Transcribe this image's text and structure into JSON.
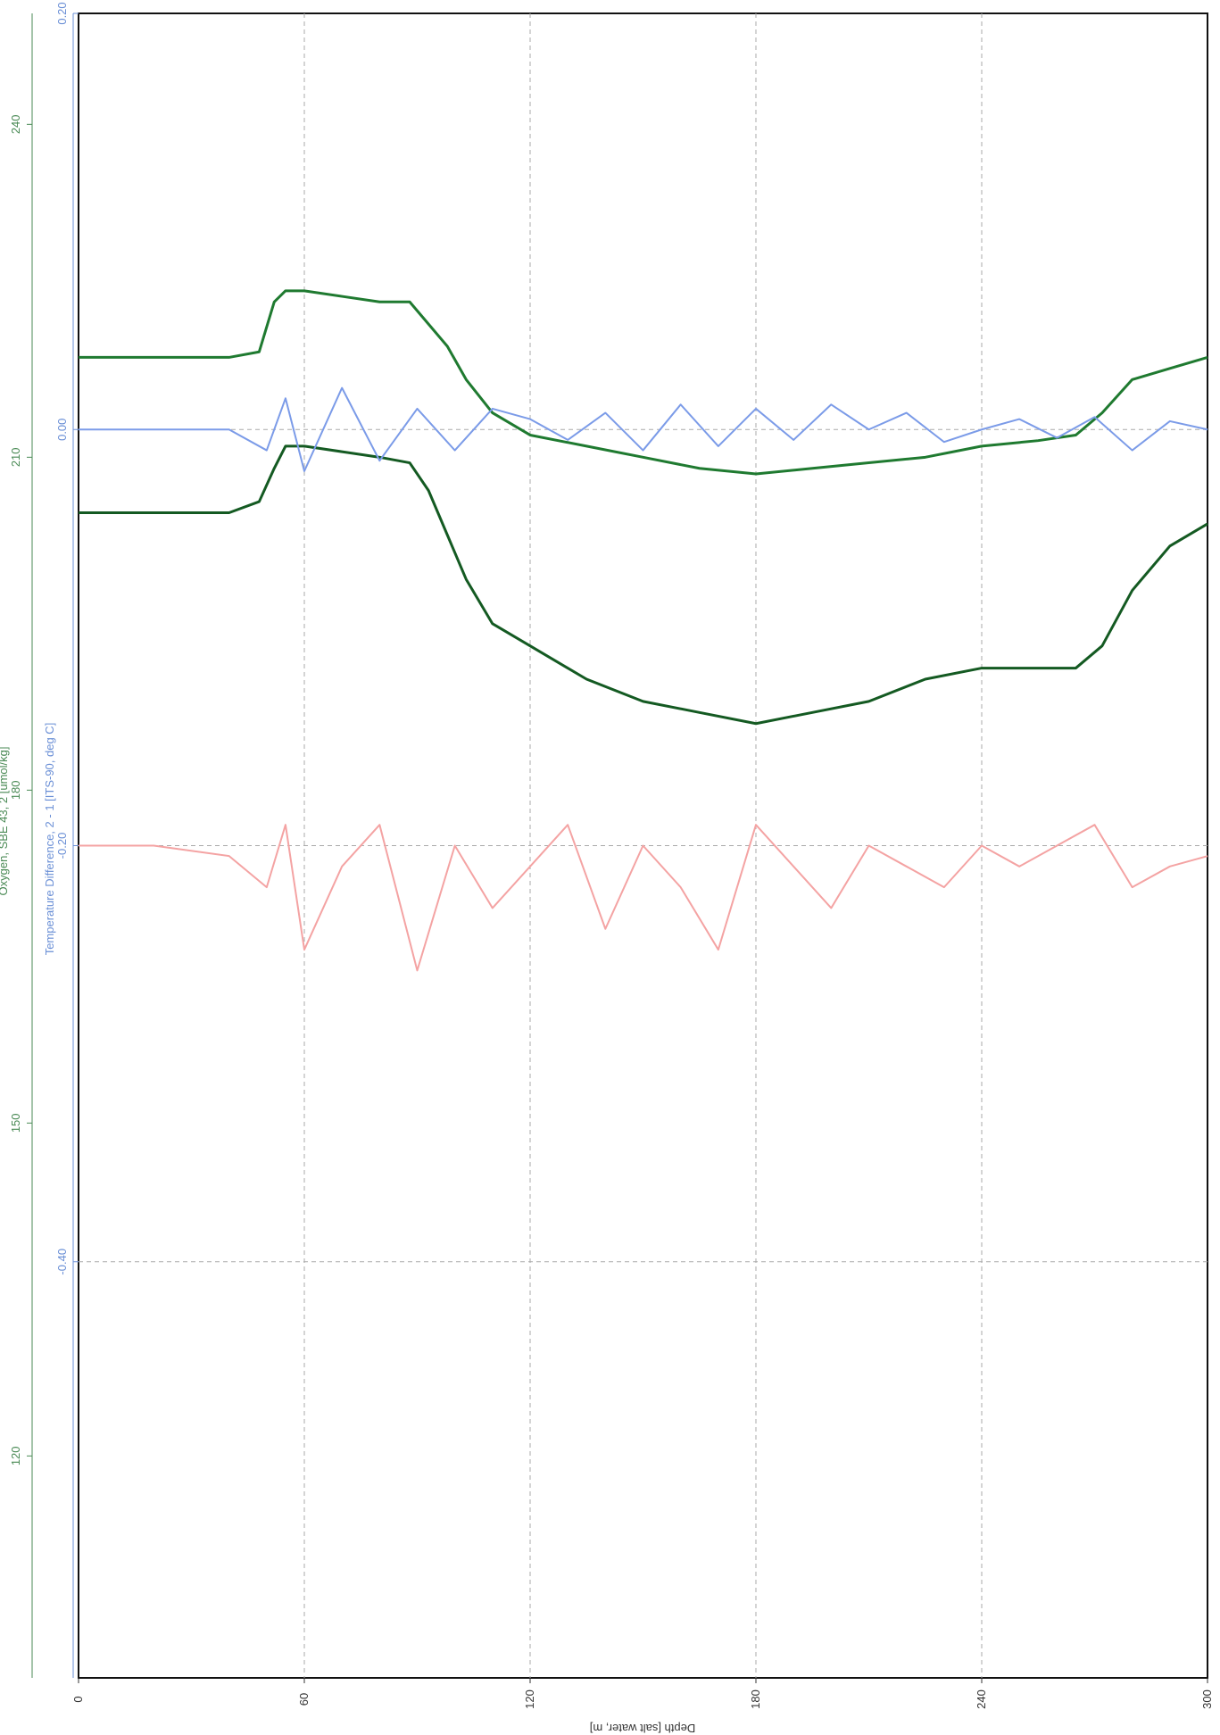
{
  "chart_data": {
    "type": "line",
    "orientation": "rotated-90",
    "grid": true,
    "colors": {
      "oxygen_axis": "#4a8a55",
      "temp_diff_axis": "#6a8fd6",
      "depth_axis": "#333333",
      "oxygen_series": "#1f7a30",
      "oxygen_series_dark": "#145a22",
      "temp_series": "#7b9be8",
      "pink_series": "#f4a3a3",
      "grid": "#aaaaaa"
    },
    "x_axis": {
      "label": "Depth [salt water, m]",
      "range": [
        0,
        300
      ],
      "ticks": [
        "0",
        "60",
        "120",
        "180",
        "240",
        "300"
      ]
    },
    "y_axis_oxygen": {
      "label": "Oxygen, SBE 43, 2 [umol/kg]",
      "range": [
        100,
        250
      ],
      "ticks": [
        "120",
        "150",
        "180",
        "210",
        "240"
      ]
    },
    "y_axis_temp_diff": {
      "label": "Temperature Difference, 2 - 1 [ITS-90, deg C]",
      "range": [
        -0.6,
        0.2
      ],
      "ticks": [
        "-0.40",
        "-0.20",
        "0.00",
        "0.20"
      ]
    },
    "series": [
      {
        "color_key": "oxygen_series",
        "x": [
          0,
          10,
          20,
          30,
          40,
          48,
          52,
          55,
          60,
          70,
          80,
          88,
          93,
          98,
          103,
          110,
          120,
          135,
          150,
          165,
          180,
          195,
          210,
          225,
          240,
          255,
          265,
          272,
          280,
          290,
          300
        ],
        "y": [
          219,
          219,
          219,
          219,
          219,
          219.5,
          224,
          225,
          225,
          224.5,
          224,
          224,
          222,
          220,
          217,
          214,
          212,
          211,
          210,
          209,
          208.5,
          209,
          209.5,
          210,
          211,
          211.5,
          212,
          214,
          217,
          218,
          219
        ]
      },
      {
        "color_key": "oxygen_series_dark",
        "x": [
          0,
          10,
          20,
          30,
          40,
          48,
          52,
          55,
          60,
          70,
          80,
          88,
          93,
          98,
          103,
          110,
          120,
          135,
          150,
          165,
          180,
          195,
          210,
          225,
          240,
          255,
          265,
          272,
          280,
          290,
          300
        ],
        "y": [
          205,
          205,
          205,
          205,
          205,
          206,
          209,
          211,
          211,
          210.5,
          210,
          209.5,
          207,
          203,
          199,
          195,
          193,
          190,
          188,
          187,
          186,
          187,
          188,
          190,
          191,
          191,
          191,
          193,
          198,
          202,
          204
        ]
      },
      {
        "color_key": "temp_series",
        "x": [
          0,
          20,
          40,
          50,
          55,
          60,
          70,
          80,
          90,
          100,
          110,
          120,
          130,
          140,
          150,
          160,
          170,
          180,
          190,
          200,
          210,
          220,
          230,
          240,
          250,
          260,
          270,
          280,
          290,
          300
        ],
        "y": [
          0.0,
          0.0,
          0.0,
          -0.01,
          0.015,
          -0.02,
          0.02,
          -0.015,
          0.01,
          -0.01,
          0.01,
          0.005,
          -0.005,
          0.008,
          -0.01,
          0.012,
          -0.008,
          0.01,
          -0.005,
          0.012,
          0.0,
          0.008,
          -0.006,
          0.0,
          0.005,
          -0.004,
          0.006,
          -0.01,
          0.004,
          0.0
        ]
      },
      {
        "color_key": "pink_series",
        "x": [
          0,
          20,
          40,
          50,
          55,
          60,
          70,
          80,
          90,
          100,
          110,
          120,
          130,
          140,
          150,
          160,
          170,
          180,
          190,
          200,
          210,
          220,
          230,
          240,
          250,
          260,
          270,
          280,
          290,
          300
        ],
        "y": [
          -0.2,
          -0.2,
          -0.205,
          -0.22,
          -0.19,
          -0.25,
          -0.21,
          -0.19,
          -0.26,
          -0.2,
          -0.23,
          -0.21,
          -0.19,
          -0.24,
          -0.2,
          -0.22,
          -0.25,
          -0.19,
          -0.21,
          -0.23,
          -0.2,
          -0.21,
          -0.22,
          -0.2,
          -0.21,
          -0.2,
          -0.19,
          -0.22,
          -0.21,
          -0.205
        ]
      }
    ]
  }
}
